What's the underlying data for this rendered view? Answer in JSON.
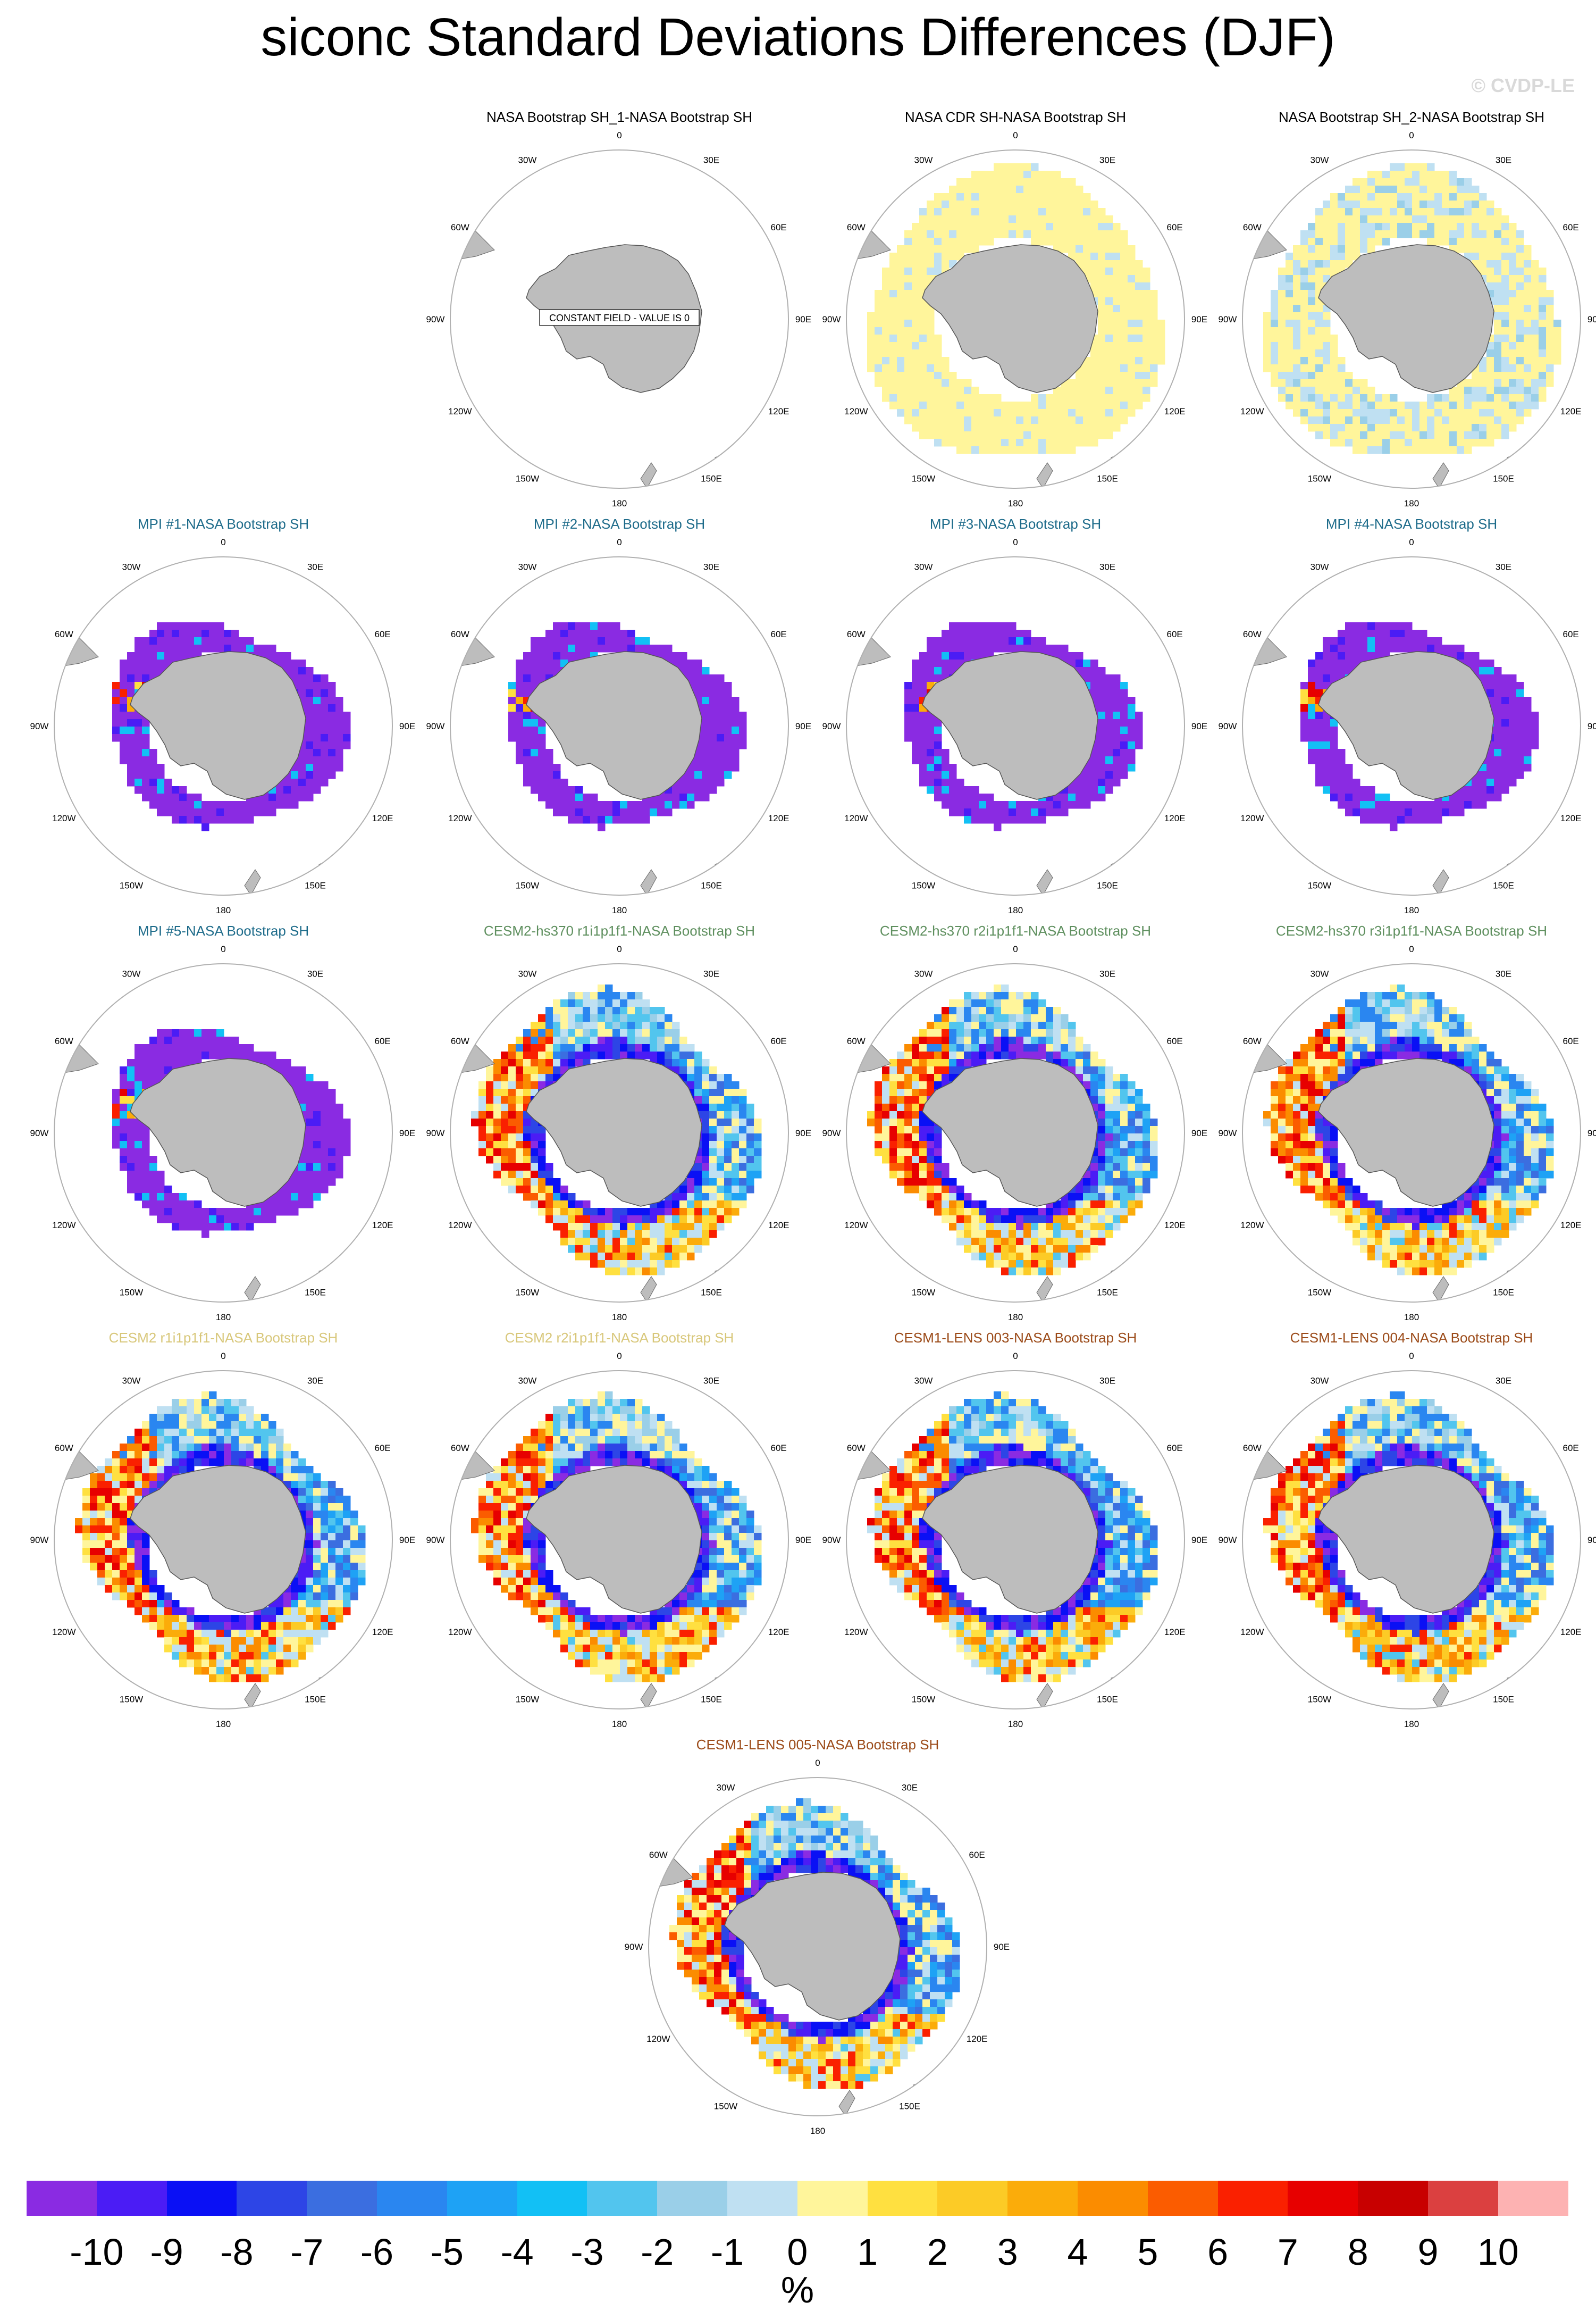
{
  "title": "siconc Standard Deviations Differences (DJF)",
  "watermark": "© CVDP-LE",
  "colors": {
    "land": "#bdbdbd",
    "grid_circle": "#b0b0b0",
    "obs_title": "#000000",
    "mpi_title": "#1d6b8a",
    "cesm2_hs_title": "#5e8f5e",
    "cesm2_title": "#d8c77a",
    "cesm1_title": "#9b4a18"
  },
  "longitude_labels": [
    "0",
    "30E",
    "60E",
    "90E",
    "120E",
    "150E",
    "180",
    "150W",
    "120W",
    "90W",
    "60W",
    "30W"
  ],
  "panels": [
    {
      "title": "NASA Bootstrap SH_1-NASA Bootstrap SH",
      "title_color": "obs_title",
      "pattern": "none",
      "note": "CONSTANT FIELD - VALUE IS 0"
    },
    {
      "title": "NASA CDR SH-NASA Bootstrap SH",
      "title_color": "obs_title",
      "pattern": "cdr",
      "note": ""
    },
    {
      "title": "NASA Bootstrap SH_2-NASA Bootstrap SH",
      "title_color": "obs_title",
      "pattern": "bs2",
      "note": ""
    },
    {
      "title": "MPI #1-NASA Bootstrap SH",
      "title_color": "mpi_title",
      "pattern": "mpi",
      "note": ""
    },
    {
      "title": "MPI #2-NASA Bootstrap SH",
      "title_color": "mpi_title",
      "pattern": "mpi",
      "note": ""
    },
    {
      "title": "MPI #3-NASA Bootstrap SH",
      "title_color": "mpi_title",
      "pattern": "mpi",
      "note": ""
    },
    {
      "title": "MPI #4-NASA Bootstrap SH",
      "title_color": "mpi_title",
      "pattern": "mpi",
      "note": ""
    },
    {
      "title": "MPI #5-NASA Bootstrap SH",
      "title_color": "mpi_title",
      "pattern": "mpi",
      "note": ""
    },
    {
      "title": "CESM2-hs370 r1i1p1f1-NASA Bootstrap SH",
      "title_color": "cesm2_hs_title",
      "pattern": "cesm",
      "note": ""
    },
    {
      "title": "CESM2-hs370 r2i1p1f1-NASA Bootstrap SH",
      "title_color": "cesm2_hs_title",
      "pattern": "cesm",
      "note": ""
    },
    {
      "title": "CESM2-hs370 r3i1p1f1-NASA Bootstrap SH",
      "title_color": "cesm2_hs_title",
      "pattern": "cesm",
      "note": ""
    },
    {
      "title": "CESM2 r1i1p1f1-NASA Bootstrap SH",
      "title_color": "cesm2_title",
      "pattern": "cesm",
      "note": ""
    },
    {
      "title": "CESM2 r2i1p1f1-NASA Bootstrap SH",
      "title_color": "cesm2_title",
      "pattern": "cesm",
      "note": ""
    },
    {
      "title": "CESM1-LENS 003-NASA Bootstrap SH",
      "title_color": "cesm1_title",
      "pattern": "cesm",
      "note": ""
    },
    {
      "title": "CESM1-LENS 004-NASA Bootstrap SH",
      "title_color": "cesm1_title",
      "pattern": "cesm",
      "note": ""
    },
    {
      "title": "CESM1-LENS 005-NASA Bootstrap SH",
      "title_color": "cesm1_title",
      "pattern": "cesm",
      "note": ""
    }
  ],
  "colorbar": {
    "unit": "%",
    "labels": [
      "-10",
      "-9",
      "-8",
      "-7",
      "-6",
      "-5",
      "-4",
      "-3",
      "-2",
      "-1",
      "0",
      "1",
      "2",
      "3",
      "4",
      "5",
      "6",
      "7",
      "8",
      "9",
      "10"
    ],
    "colors": [
      "#8a2be2",
      "#4b1cf5",
      "#0a10f5",
      "#2d45e6",
      "#3b6ee0",
      "#2a86f0",
      "#1ea2f5",
      "#12c0f5",
      "#52c5ee",
      "#9acfe8",
      "#bfe0f2",
      "#fff59b",
      "#ffe040",
      "#fccb26",
      "#fbac0a",
      "#fb8c00",
      "#fb5c00",
      "#fa2000",
      "#e70000",
      "#c80000",
      "#db4040",
      "#fdb2b2"
    ]
  }
}
